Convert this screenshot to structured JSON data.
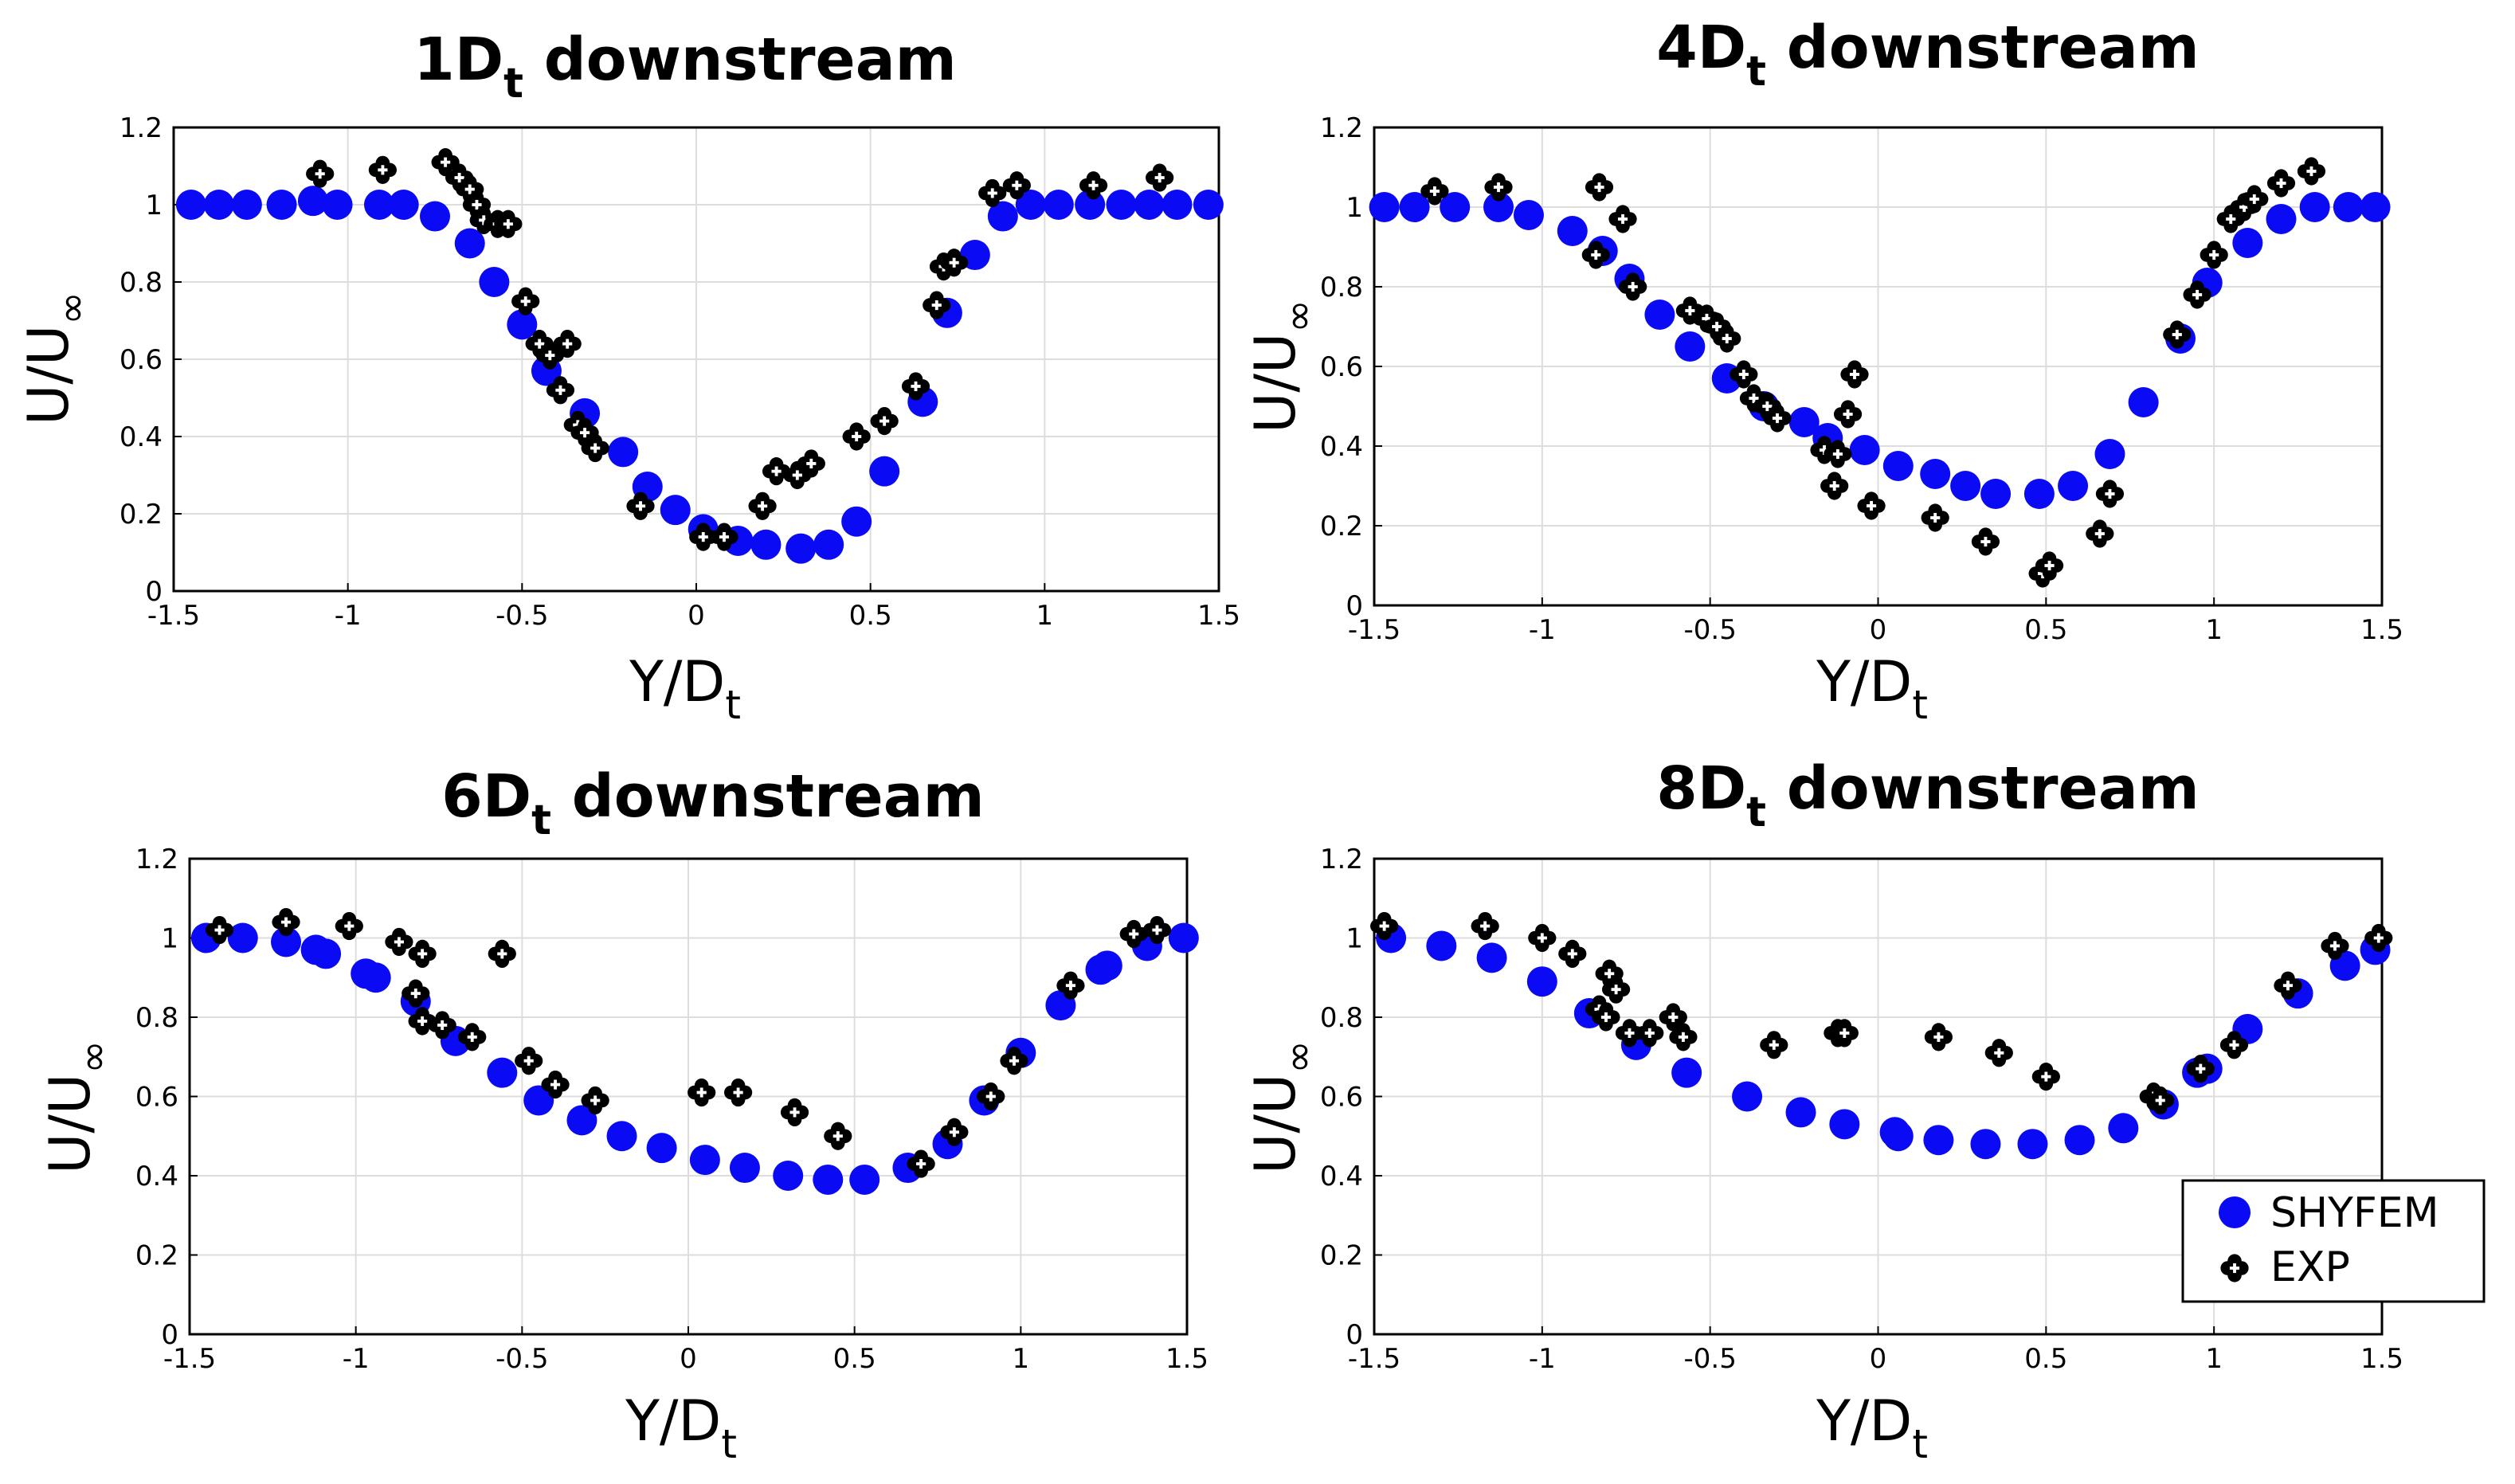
{
  "colors": {
    "shyfem": "#0a0af5",
    "exp": "#000000",
    "background": "#ffffff",
    "grid": "#dddddd"
  },
  "legend": {
    "entries": [
      "SHYFEM",
      "EXP"
    ],
    "position": "bottom-right of 8Dt panel"
  },
  "chart_data": [
    {
      "type": "scatter",
      "title_main": "1D",
      "title_sub": "t",
      "title_rest": " downstream",
      "xlabel_main": "Y/D",
      "xlabel_sub": "t",
      "ylabel_main": "U/U",
      "ylabel_sub": "∞",
      "xlim": [
        -1.5,
        1.5
      ],
      "ylim": [
        0,
        1.2
      ],
      "xticks": [
        -1.5,
        -1,
        -0.5,
        0,
        0.5,
        1,
        1.5
      ],
      "xtick_labels": [
        "-1.5",
        "-1",
        "-0.5",
        "0",
        "0.5",
        "1",
        "1.5"
      ],
      "yticks": [
        0,
        0.2,
        0.4,
        0.6,
        0.8,
        1,
        1.2
      ],
      "ytick_labels": [
        "0",
        "0.2",
        "0.4",
        "0.6",
        "0.8",
        "1",
        "1.2"
      ],
      "series": [
        {
          "name": "SHYFEM",
          "marker": "circle",
          "x": [
            -1.45,
            -1.37,
            -1.29,
            -1.19,
            -1.1,
            -1.03,
            -0.91,
            -0.84,
            -0.75,
            -0.65,
            -0.58,
            -0.5,
            -0.43,
            -0.32,
            -0.21,
            -0.14,
            -0.06,
            0.02,
            0.12,
            0.2,
            0.3,
            0.38,
            0.46,
            0.54,
            0.65,
            0.72,
            0.8,
            0.88,
            0.96,
            1.04,
            1.13,
            1.22,
            1.3,
            1.38,
            1.47
          ],
          "y": [
            1.0,
            1.0,
            1.0,
            1.0,
            1.01,
            1.0,
            1.0,
            1.0,
            0.97,
            0.9,
            0.8,
            0.69,
            0.57,
            0.46,
            0.36,
            0.27,
            0.21,
            0.16,
            0.13,
            0.12,
            0.11,
            0.12,
            0.18,
            0.31,
            0.49,
            0.72,
            0.87,
            0.97,
            1.0,
            1.0,
            1.0,
            1.0,
            1.0,
            1.0,
            1.0
          ]
        },
        {
          "name": "EXP",
          "marker": "plus-ring",
          "x": [
            -1.08,
            -0.9,
            -0.72,
            -0.68,
            -0.65,
            -0.63,
            -0.61,
            -0.57,
            -0.54,
            -0.49,
            -0.45,
            -0.42,
            -0.39,
            -0.37,
            -0.34,
            -0.32,
            -0.29,
            -0.16,
            0.02,
            0.08,
            0.19,
            0.23,
            0.29,
            0.33,
            0.46,
            0.54,
            0.63,
            0.69,
            0.71,
            0.74,
            0.85,
            0.92,
            1.14,
            1.33
          ],
          "y": [
            1.08,
            1.09,
            1.11,
            1.07,
            1.04,
            1.0,
            0.96,
            0.95,
            0.95,
            0.75,
            0.64,
            0.61,
            0.52,
            0.64,
            0.43,
            0.41,
            0.37,
            0.22,
            0.14,
            0.14,
            0.22,
            0.31,
            0.3,
            0.33,
            0.4,
            0.44,
            0.53,
            0.74,
            0.84,
            0.85,
            1.03,
            1.05,
            1.05,
            1.07
          ]
        }
      ]
    },
    {
      "type": "scatter",
      "title_main": "4D",
      "title_sub": "t",
      "title_rest": " downstream",
      "xlabel_main": "Y/D",
      "xlabel_sub": "t",
      "ylabel_main": "U/U",
      "ylabel_sub": "∞",
      "xlim": [
        -1.5,
        1.5
      ],
      "ylim": [
        0,
        1.2
      ],
      "xticks": [
        -1.5,
        -1,
        -0.5,
        0,
        0.5,
        1,
        1.5
      ],
      "xtick_labels": [
        "-1.5",
        "-1",
        "-0.5",
        "0",
        "0.5",
        "1",
        "1.5"
      ],
      "yticks": [
        0,
        0.2,
        0.4,
        0.6,
        0.8,
        1,
        1.2
      ],
      "ytick_labels": [
        "0",
        "0.2",
        "0.4",
        "0.6",
        "0.8",
        "1",
        "1.2"
      ],
      "series": [
        {
          "name": "SHYFEM",
          "marker": "circle",
          "x": [
            -1.47,
            -1.38,
            -1.26,
            -1.13,
            -1.04,
            -0.91,
            -0.82,
            -0.74,
            -0.65,
            -0.56,
            -0.45,
            -0.34,
            -0.22,
            -0.15,
            -0.04,
            0.06,
            0.17,
            0.26,
            0.35,
            0.48,
            0.58,
            0.69,
            0.79,
            0.9,
            0.98,
            1.1,
            1.2,
            1.3,
            1.4,
            1.48
          ],
          "y": [
            1.0,
            1.0,
            1.0,
            1.0,
            0.98,
            0.94,
            0.89,
            0.82,
            0.73,
            0.65,
            0.57,
            0.5,
            0.46,
            0.42,
            0.39,
            0.35,
            0.33,
            0.3,
            0.28,
            0.28,
            0.3,
            0.38,
            0.51,
            0.67,
            0.81,
            0.91,
            0.97,
            1.0,
            1.0,
            1.0
          ],
          "y_note": ""
        },
        {
          "name": "EXP",
          "marker": "plus-ring",
          "x": [
            -1.32,
            -1.13,
            -0.83,
            -0.84,
            -0.76,
            -0.73,
            -0.56,
            -0.51,
            -0.48,
            -0.45,
            -0.4,
            -0.37,
            -0.33,
            -0.3,
            -0.16,
            -0.13,
            -0.12,
            -0.09,
            -0.07,
            -0.02,
            0.17,
            0.32,
            0.49,
            0.51,
            0.66,
            0.69,
            0.89,
            0.95,
            1.0,
            1.05,
            1.09,
            1.12,
            1.2,
            1.29
          ],
          "y": [
            1.04,
            1.05,
            1.05,
            0.88,
            0.97,
            0.8,
            0.74,
            0.72,
            0.7,
            0.67,
            0.58,
            0.52,
            0.5,
            0.47,
            0.39,
            0.3,
            0.38,
            0.48,
            0.58,
            0.25,
            0.22,
            0.16,
            0.08,
            0.1,
            0.18,
            0.28,
            0.68,
            0.78,
            0.88,
            0.97,
            1.0,
            1.02,
            1.06,
            1.09
          ]
        }
      ]
    },
    {
      "type": "scatter",
      "title_main": "6D",
      "title_sub": "t",
      "title_rest": " downstream",
      "xlabel_main": "Y/D",
      "xlabel_sub": "t",
      "ylabel_main": "U/U",
      "ylabel_sub": "∞",
      "xlim": [
        -1.5,
        1.5
      ],
      "ylim": [
        0,
        1.2
      ],
      "xticks": [
        -1.5,
        -1,
        -0.5,
        0,
        0.5,
        1,
        1.5
      ],
      "xtick_labels": [
        "-1.5",
        "-1",
        "-0.5",
        "0",
        "0.5",
        "1",
        "1.5"
      ],
      "yticks": [
        0,
        0.2,
        0.4,
        0.6,
        0.8,
        1,
        1.2
      ],
      "ytick_labels": [
        "0",
        "0.2",
        "0.4",
        "0.6",
        "0.8",
        "1",
        "1.2"
      ],
      "series": [
        {
          "name": "SHYFEM",
          "marker": "circle",
          "x": [
            -1.45,
            -1.34,
            -1.21,
            -1.12,
            -1.09,
            -0.97,
            -0.94,
            -0.82,
            -0.7,
            -0.56,
            -0.45,
            -0.32,
            -0.2,
            -0.08,
            0.05,
            0.17,
            0.3,
            0.42,
            0.53,
            0.66,
            0.78,
            0.89,
            1.0,
            1.12,
            1.24,
            1.26,
            1.38,
            1.49
          ],
          "y": [
            1.0,
            1.0,
            0.99,
            0.97,
            0.96,
            0.91,
            0.9,
            0.84,
            0.74,
            0.66,
            0.59,
            0.54,
            0.5,
            0.47,
            0.44,
            0.42,
            0.4,
            0.39,
            0.39,
            0.42,
            0.48,
            0.59,
            0.71,
            0.83,
            0.92,
            0.93,
            0.98,
            1.0
          ]
        },
        {
          "name": "EXP",
          "marker": "plus-ring",
          "x": [
            -1.41,
            -1.21,
            -1.02,
            -0.87,
            -0.8,
            -0.82,
            -0.8,
            -0.74,
            -0.65,
            -0.56,
            -0.48,
            -0.4,
            -0.28,
            0.04,
            0.15,
            0.32,
            0.45,
            0.7,
            0.8,
            0.91,
            0.98,
            1.15,
            1.34,
            1.41
          ],
          "y": [
            1.02,
            1.04,
            1.03,
            0.99,
            0.96,
            0.86,
            0.79,
            0.78,
            0.75,
            0.96,
            0.69,
            0.63,
            0.59,
            0.61,
            0.61,
            0.56,
            0.5,
            0.43,
            0.51,
            0.6,
            0.69,
            0.88,
            1.01,
            1.02
          ]
        }
      ]
    },
    {
      "type": "scatter",
      "title_main": "8D",
      "title_sub": "t",
      "title_rest": " downstream",
      "xlabel_main": "Y/D",
      "xlabel_sub": "t",
      "ylabel_main": "U/U",
      "ylabel_sub": "∞",
      "xlim": [
        -1.5,
        1.5
      ],
      "ylim": [
        0,
        1.2
      ],
      "xticks": [
        -1.5,
        -1,
        -0.5,
        0,
        0.5,
        1,
        1.5
      ],
      "xtick_labels": [
        "-1.5",
        "-1",
        "-0.5",
        "0",
        "0.5",
        "1",
        "1.5"
      ],
      "yticks": [
        0,
        0.2,
        0.4,
        0.6,
        0.8,
        1,
        1.2
      ],
      "ytick_labels": [
        "0",
        "0.2",
        "0.4",
        "0.6",
        "0.8",
        "1",
        "1.2"
      ],
      "series": [
        {
          "name": "SHYFEM",
          "marker": "circle",
          "x": [
            -1.45,
            -1.3,
            -1.15,
            -1.0,
            -0.86,
            -0.72,
            -0.57,
            -0.39,
            -0.23,
            -0.1,
            0.05,
            0.06,
            0.18,
            0.32,
            0.46,
            0.6,
            0.73,
            0.85,
            0.95,
            0.98,
            1.1,
            1.25,
            1.39,
            1.48
          ],
          "y": [
            1.0,
            0.98,
            0.95,
            0.89,
            0.81,
            0.73,
            0.66,
            0.6,
            0.56,
            0.53,
            0.51,
            0.5,
            0.49,
            0.48,
            0.48,
            0.49,
            0.52,
            0.58,
            0.66,
            0.67,
            0.77,
            0.86,
            0.93,
            0.97
          ],
          "y_note": ""
        },
        {
          "name": "EXP",
          "marker": "plus-ring",
          "x": [
            -1.47,
            -1.17,
            -1.0,
            -0.91,
            -0.83,
            -0.81,
            -0.8,
            -0.78,
            -0.74,
            -0.68,
            -0.61,
            -0.58,
            -0.31,
            -0.12,
            -0.1,
            0.18,
            0.36,
            0.5,
            0.82,
            0.84,
            0.96,
            1.06,
            1.22,
            1.36,
            1.49
          ],
          "y": [
            1.03,
            1.03,
            1.0,
            0.96,
            0.82,
            0.8,
            0.91,
            0.87,
            0.76,
            0.76,
            0.8,
            0.75,
            0.73,
            0.76,
            0.76,
            0.75,
            0.71,
            0.65,
            0.6,
            0.59,
            0.67,
            0.73,
            0.88,
            0.98,
            1.0
          ]
        }
      ]
    }
  ]
}
